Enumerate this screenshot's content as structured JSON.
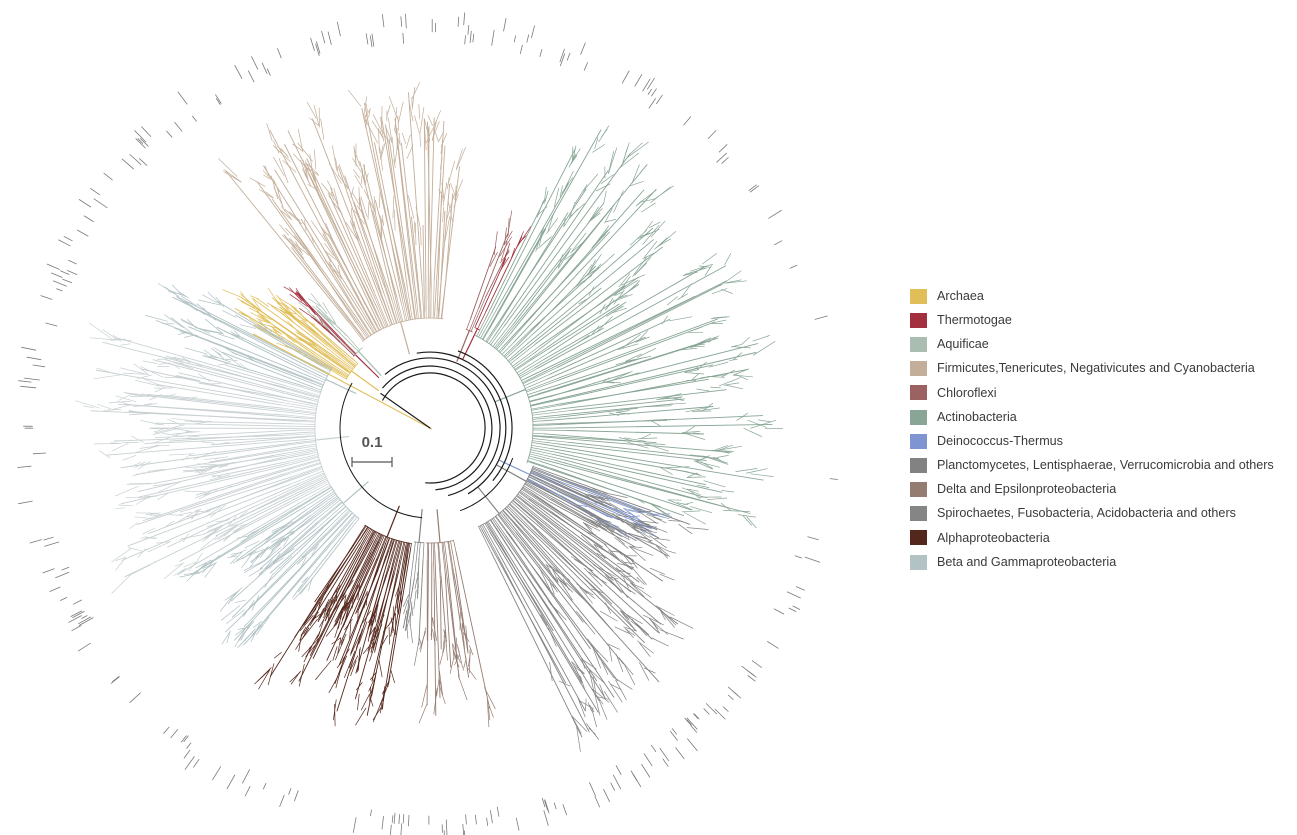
{
  "figure": {
    "scale_bar_label": "0.1",
    "branch_colors": {
      "backbone": "#1a1a1a",
      "archaea": "#E0BE58",
      "thermotogae": "#A3303F",
      "aquificae": "#A9BDB1",
      "firmicutes": "#C3AE99",
      "chloroflexi": "#9C6262",
      "actinobacteria": "#88A595",
      "deinococcus": "#7E95D1",
      "planctomycetes": "#828282",
      "delta_epsilon": "#957C70",
      "spirochaetes": "#858585",
      "alpha": "#54271C",
      "beta_gamma": "#B2C2C5",
      "beta_gamma_light": "#C8D0D2",
      "outer_ticks": "#7a7a7a"
    }
  },
  "legend": {
    "items": [
      {
        "label": "Archaea",
        "color": "#E0BE58"
      },
      {
        "label": "Thermotogae",
        "color": "#A3303F"
      },
      {
        "label": "Aquificae",
        "color": "#A9BDB1"
      },
      {
        "label": "Firmicutes,Tenericutes, Negativicutes and Cyanobacteria",
        "color": "#C3AE99"
      },
      {
        "label": "Chloroflexi",
        "color": "#9C6262"
      },
      {
        "label": "Actinobacteria",
        "color": "#88A595"
      },
      {
        "label": "Deinococcus-Thermus",
        "color": "#7E95D1"
      },
      {
        "label": "Planctomycetes, Lentisphaerae, Verrucomicrobia and others",
        "color": "#828282"
      },
      {
        "label": "Delta and Epsilonproteobacteria",
        "color": "#957C70"
      },
      {
        "label": "Spirochaetes, Fusobacteria, Acidobacteria and others",
        "color": "#858585"
      },
      {
        "label": "Alphaproteobacteria",
        "color": "#54271C"
      },
      {
        "label": "Beta and Gammaproteobacteria",
        "color": "#B2C2C5"
      }
    ]
  }
}
